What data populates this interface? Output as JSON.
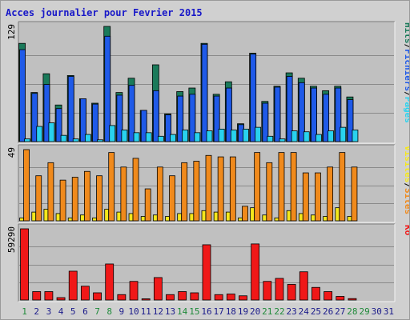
{
  "title": "Acces journalier pour Fevrier 2015",
  "colors": {
    "title": "#1818c8",
    "hits": "#1a7a5a",
    "files": "#1f5ae8",
    "pages": "#29d2ee",
    "visits": "#f5e81c",
    "sites": "#f08a1c",
    "kbytes": "#f01818",
    "axis_day": "#1a1a8a",
    "axis_weekend": "#1f8a3a",
    "plot_bg": "#c0c0c0"
  },
  "chart_data": [
    {
      "type": "bar",
      "name": "hits-files-pages",
      "ylabel_parts": [
        "Pages",
        "/",
        "Fichiers",
        "/",
        "Hits"
      ],
      "ymax_label": "129",
      "ylim": [
        0,
        129
      ],
      "x": [
        1,
        2,
        3,
        4,
        5,
        6,
        7,
        8,
        9,
        10,
        11,
        12,
        13,
        14,
        15,
        16,
        17,
        18,
        19,
        20,
        21,
        22,
        23,
        24,
        25,
        26,
        27,
        28
      ],
      "series": [
        {
          "name": "Hits",
          "values": [
            110,
            55,
            76,
            41,
            74,
            48,
            43,
            129,
            55,
            71,
            35,
            86,
            31,
            56,
            60,
            110,
            53,
            67,
            20,
            99,
            45,
            62,
            77,
            71,
            62,
            57,
            62,
            50
          ]
        },
        {
          "name": "Fichiers",
          "values": [
            103,
            54,
            64,
            37,
            73,
            48,
            42,
            118,
            52,
            63,
            35,
            57,
            30,
            51,
            53,
            109,
            51,
            60,
            19,
            98,
            43,
            61,
            73,
            66,
            60,
            53,
            60,
            47
          ]
        },
        {
          "name": "Pages",
          "values": [
            3,
            17,
            21,
            7,
            3,
            8,
            2,
            18,
            13,
            10,
            10,
            6,
            8,
            13,
            10,
            12,
            14,
            13,
            14,
            16,
            6,
            3,
            12,
            11,
            8,
            12,
            16,
            13
          ]
        }
      ]
    },
    {
      "type": "bar",
      "name": "visits-sites",
      "ylabel_parts": [
        "Sites",
        "/",
        "Visites"
      ],
      "ymax_label": "49",
      "ylim": [
        0,
        49
      ],
      "x": [
        1,
        2,
        3,
        4,
        5,
        6,
        7,
        8,
        9,
        10,
        11,
        12,
        13,
        14,
        15,
        16,
        17,
        18,
        19,
        20,
        21,
        22,
        23,
        24,
        25,
        26,
        27,
        28
      ],
      "series": [
        {
          "name": "Visites",
          "values": [
            2,
            6,
            8,
            5,
            2,
            4,
            2,
            8,
            6,
            5,
            3,
            4,
            3,
            5,
            5,
            7,
            6,
            6,
            2,
            9,
            4,
            2,
            7,
            5,
            4,
            3,
            9,
            3
          ]
        },
        {
          "name": "Sites",
          "values": [
            49,
            31,
            40,
            28,
            30,
            34,
            31,
            47,
            37,
            43,
            22,
            37,
            31,
            40,
            41,
            45,
            44,
            44,
            10,
            47,
            40,
            47,
            47,
            33,
            33,
            37,
            47,
            37
          ]
        }
      ]
    },
    {
      "type": "bar",
      "name": "kbytes",
      "ylabel_parts": [
        "Ko"
      ],
      "ymax_label": "59290",
      "ylim": [
        0,
        59290
      ],
      "x": [
        1,
        2,
        3,
        4,
        5,
        6,
        7,
        8,
        9,
        10,
        11,
        12,
        13,
        14,
        15,
        16,
        17,
        18,
        19,
        20,
        21,
        22,
        23,
        24,
        25,
        26,
        27,
        28
      ],
      "series": [
        {
          "name": "Ko",
          "values": [
            59290,
            7000,
            7000,
            2000,
            24000,
            11500,
            6000,
            30000,
            4500,
            15500,
            1000,
            18700,
            4500,
            7000,
            6000,
            46000,
            4500,
            5000,
            3500,
            46700,
            15500,
            18000,
            13000,
            23500,
            10500,
            7000,
            3000,
            1200
          ]
        }
      ]
    }
  ],
  "days": [
    {
      "label": "1",
      "weekend": true
    },
    {
      "label": "2",
      "weekend": false
    },
    {
      "label": "3",
      "weekend": false
    },
    {
      "label": "4",
      "weekend": false
    },
    {
      "label": "5",
      "weekend": false
    },
    {
      "label": "6",
      "weekend": false
    },
    {
      "label": "7",
      "weekend": true
    },
    {
      "label": "8",
      "weekend": true
    },
    {
      "label": "9",
      "weekend": false
    },
    {
      "label": "10",
      "weekend": false
    },
    {
      "label": "11",
      "weekend": false
    },
    {
      "label": "12",
      "weekend": false
    },
    {
      "label": "13",
      "weekend": false
    },
    {
      "label": "14",
      "weekend": true
    },
    {
      "label": "15",
      "weekend": true
    },
    {
      "label": "16",
      "weekend": false
    },
    {
      "label": "17",
      "weekend": false
    },
    {
      "label": "18",
      "weekend": false
    },
    {
      "label": "19",
      "weekend": false
    },
    {
      "label": "20",
      "weekend": false
    },
    {
      "label": "21",
      "weekend": true
    },
    {
      "label": "22",
      "weekend": true
    },
    {
      "label": "23",
      "weekend": false
    },
    {
      "label": "24",
      "weekend": false
    },
    {
      "label": "25",
      "weekend": false
    },
    {
      "label": "26",
      "weekend": false
    },
    {
      "label": "27",
      "weekend": false
    },
    {
      "label": "28",
      "weekend": true
    },
    {
      "label": "29",
      "weekend": true
    },
    {
      "label": "30",
      "weekend": false
    },
    {
      "label": "31",
      "weekend": false
    }
  ]
}
